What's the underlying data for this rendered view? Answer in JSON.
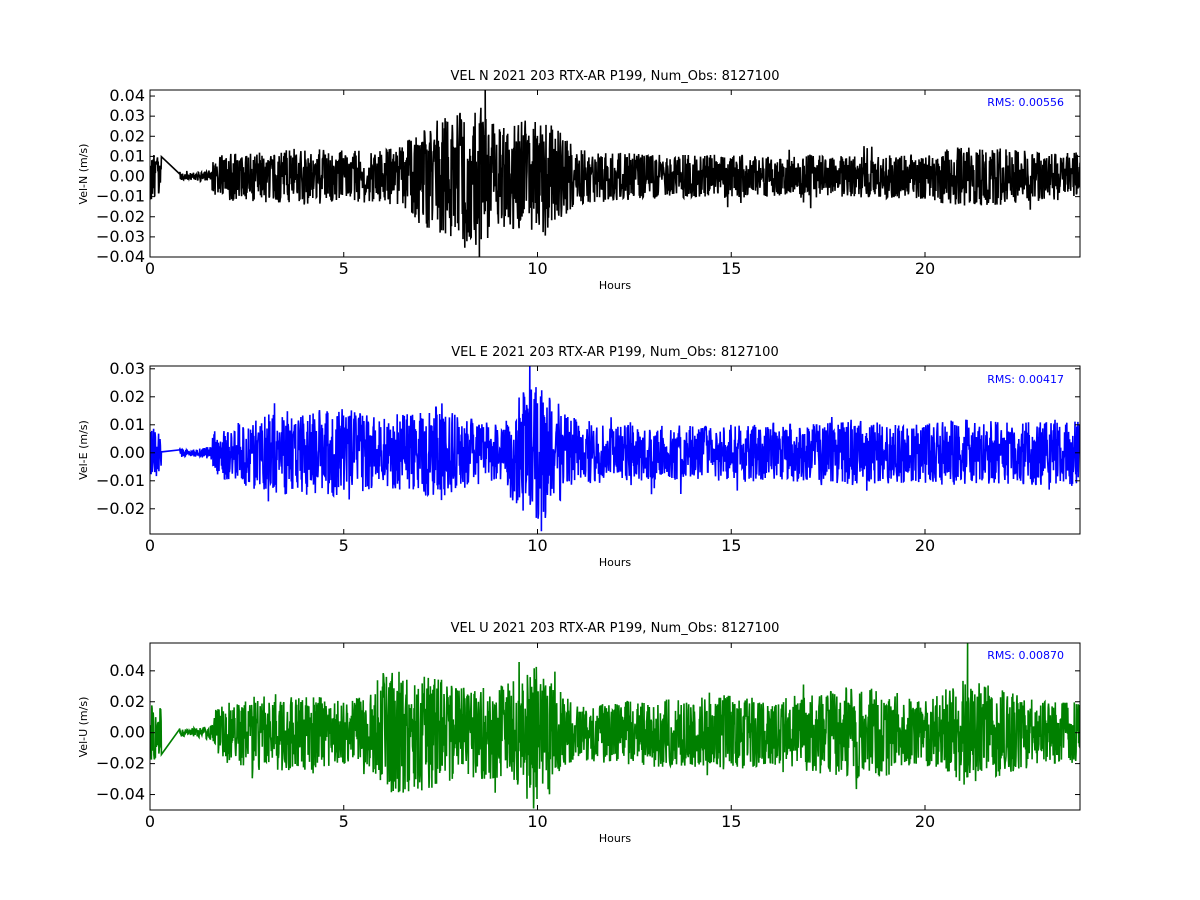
{
  "chart_data": [
    {
      "type": "line",
      "title": "VEL N 2021 203 RTX-AR  P199, Num_Obs: 8127100",
      "xlabel": "Hours",
      "ylabel": "Vel-N (m/s)",
      "xlim": [
        0,
        24
      ],
      "ylim": [
        -0.04,
        0.043
      ],
      "xticks": [
        0,
        5,
        10,
        15,
        20
      ],
      "xtick_labels": [
        "0",
        "5",
        "10",
        "15",
        "20"
      ],
      "yticks": [
        -0.04,
        -0.03,
        -0.02,
        -0.01,
        0.0,
        0.01,
        0.02,
        0.03,
        0.04
      ],
      "ytick_labels": [
        "−0.04",
        "−0.03",
        "−0.02",
        "−0.01",
        "0.00",
        "0.01",
        "0.02",
        "0.03",
        "0.04"
      ],
      "annotation": "RMS:  0.00556",
      "color": "#000000",
      "series": [
        {
          "envelope_hours": [
            0,
            1,
            2,
            3,
            4,
            5,
            6,
            6.5,
            7,
            7.5,
            8,
            8.5,
            9,
            9.5,
            10,
            10.5,
            11,
            12,
            13,
            14,
            15,
            16,
            17,
            18,
            19,
            20,
            21,
            22,
            23,
            24
          ],
          "envelope_amplitude": [
            0.012,
            0.005,
            0.012,
            0.013,
            0.014,
            0.013,
            0.013,
            0.015,
            0.025,
            0.03,
            0.032,
            0.035,
            0.025,
            0.028,
            0.03,
            0.024,
            0.014,
            0.012,
            0.011,
            0.011,
            0.011,
            0.01,
            0.011,
            0.01,
            0.011,
            0.012,
            0.015,
            0.014,
            0.012,
            0.012
          ],
          "peak_max": 0.043,
          "peak_min": -0.04
        }
      ]
    },
    {
      "type": "line",
      "title": "VEL E 2021 203 RTX-AR  P199, Num_Obs: 8127100",
      "xlabel": "Hours",
      "ylabel": "Vel-E (m/s)",
      "xlim": [
        0,
        24
      ],
      "ylim": [
        -0.029,
        0.031
      ],
      "xticks": [
        0,
        5,
        10,
        15,
        20
      ],
      "xtick_labels": [
        "0",
        "5",
        "10",
        "15",
        "20"
      ],
      "yticks": [
        -0.02,
        -0.01,
        0.0,
        0.01,
        0.02,
        0.03
      ],
      "ytick_labels": [
        "−0.02",
        "−0.01",
        "0.00",
        "0.01",
        "0.02",
        "0.03"
      ],
      "annotation": "RMS:  0.00417",
      "color": "#0000ff",
      "series": [
        {
          "envelope_hours": [
            0,
            1,
            2,
            3,
            4,
            5,
            6,
            7,
            7.5,
            8,
            9,
            9.5,
            10,
            10.5,
            11,
            12,
            13,
            14,
            15,
            16,
            17,
            18,
            19,
            20,
            21,
            22,
            23,
            24
          ],
          "envelope_amplitude": [
            0.01,
            0.003,
            0.01,
            0.015,
            0.015,
            0.016,
            0.012,
            0.015,
            0.018,
            0.013,
            0.01,
            0.02,
            0.026,
            0.02,
            0.012,
            0.01,
            0.01,
            0.01,
            0.01,
            0.011,
            0.01,
            0.012,
            0.011,
            0.011,
            0.012,
            0.011,
            0.012,
            0.012
          ],
          "peak_max": 0.031,
          "peak_min": -0.028
        }
      ]
    },
    {
      "type": "line",
      "title": "VEL U 2021 203 RTX-AR  P199, Num_Obs: 8127100",
      "xlabel": "Hours",
      "ylabel": "Vel-U (m/s)",
      "xlim": [
        0,
        24
      ],
      "ylim": [
        -0.05,
        0.058
      ],
      "xticks": [
        0,
        5,
        10,
        15,
        20
      ],
      "xtick_labels": [
        "0",
        "5",
        "10",
        "15",
        "20"
      ],
      "yticks": [
        -0.04,
        -0.02,
        0.0,
        0.02,
        0.04
      ],
      "ytick_labels": [
        "−0.04",
        "−0.02",
        "0.00",
        "0.02",
        "0.04"
      ],
      "annotation": "RMS:  0.00870",
      "color": "#008000",
      "series": [
        {
          "envelope_hours": [
            0,
            1,
            2,
            3,
            4,
            5,
            5.5,
            6,
            6.5,
            7,
            7.5,
            8,
            9,
            9.5,
            10,
            10.5,
            11,
            12,
            13,
            14,
            15,
            16,
            17,
            18,
            19,
            20,
            21,
            22,
            23,
            24
          ],
          "envelope_amplitude": [
            0.02,
            0.005,
            0.02,
            0.025,
            0.025,
            0.02,
            0.025,
            0.04,
            0.04,
            0.038,
            0.035,
            0.03,
            0.03,
            0.035,
            0.045,
            0.03,
            0.018,
            0.02,
            0.022,
            0.022,
            0.025,
            0.022,
            0.025,
            0.03,
            0.028,
            0.02,
            0.035,
            0.028,
            0.02,
            0.02
          ],
          "peak_max": 0.058,
          "peak_min": -0.049
        }
      ]
    }
  ]
}
